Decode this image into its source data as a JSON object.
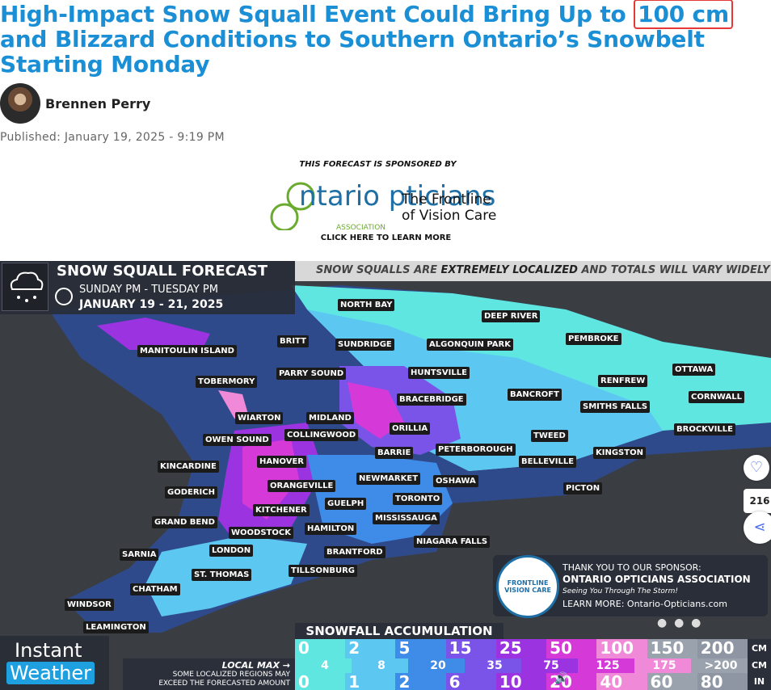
{
  "article": {
    "title_part1": "High-Impact Snow Squall Event Could Bring Up to",
    "title_highlight": "100 cm",
    "title_part2": "and Blizzard Conditions to Southern Ontario’s Snowbelt Starting Monday",
    "author": "Brennen Perry",
    "published": "Published: January 19, 2025 - 9:19 PM"
  },
  "sponsor": {
    "intro": "THIS FORECAST IS SPONSORED BY",
    "logo_name": "ntario pticians",
    "association": "ASSOCIATION",
    "tagline_line1": "The Frontline",
    "tagline_line2": "of Vision Care",
    "cta": "CLICK HERE TO LEARN MORE"
  },
  "map": {
    "title": "SNOW SQUALL FORECAST",
    "period": "SUNDAY PM - TUESDAY PM",
    "dates": "JANUARY 19 - 21, 2025",
    "banner_a": "SNOW SQUALLS ARE",
    "banner_b": "EXTREMELY LOCALIZED",
    "banner_c": "AND TOTALS WILL VARY WIDELY",
    "cities": [
      "NORTH BAY",
      "DEEP RIVER",
      "PEMBROKE",
      "BRITT",
      "SUNDRIDGE",
      "ALGONQUIN PARK",
      "MANITOULIN ISLAND",
      "TOBERMORY",
      "PARRY SOUND",
      "HUNTSVILLE",
      "RENFREW",
      "OTTAWA",
      "BRACEBRIDGE",
      "BANCROFT",
      "SMITHS FALLS",
      "CORNWALL",
      "WIARTON",
      "MIDLAND",
      "ORILLIA",
      "BROCKVILLE",
      "OWEN SOUND",
      "COLLINGWOOD",
      "TWEED",
      "BARRIE",
      "PETERBOROUGH",
      "HANOVER",
      "KINGSTON",
      "KINCARDINE",
      "BELLEVILLE",
      "NEWMARKET",
      "OSHAWA",
      "ORANGEVILLE",
      "PICTON",
      "GODERICH",
      "TORONTO",
      "GUELPH",
      "KITCHENER",
      "MISSISSAUGA",
      "GRAND BEND",
      "HAMILTON",
      "WOODSTOCK",
      "NIAGARA FALLS",
      "SARNIA",
      "LONDON",
      "BRANTFORD",
      "TILLSONBURG",
      "ST. THOMAS",
      "CHATHAM",
      "WINDSOR",
      "LEAMINGTON"
    ],
    "thanks_line": "THANK YOU TO OUR SPONSOR:",
    "thanks_org": "ONTARIO OPTICIANS ASSOCIATION",
    "thanks_seeing": "Seeing You Through The Storm!",
    "thanks_learn": "LEARN MORE: Ontario-Opticians.com",
    "thanks_logo": "FRONTLINE VISION CARE",
    "legend_title": "SNOWFALL ACCUMULATION",
    "local_max": "LOCAL MAX →",
    "local_note1": "SOME LOCALIZED REGIONS MAY",
    "local_note2": "EXCEED THE FORECASTED AMOUNT",
    "cm_values": [
      "0",
      "2",
      "5",
      "15",
      "25",
      "50",
      "100",
      "150",
      "200"
    ],
    "max_values": [
      "4",
      "8",
      "20",
      "35",
      "75",
      "125",
      "175",
      ">200"
    ],
    "in_values": [
      "0",
      "1",
      "2",
      "6",
      "10",
      "20",
      "40",
      "60",
      "80"
    ],
    "unit_cm": "CM",
    "unit_cm2": "CM",
    "unit_in": "IN",
    "brand_line1": "Instant",
    "brand_line2": "Weather",
    "legend_colors": [
      "#5fe6e0",
      "#5cc8f2",
      "#3f8be8",
      "#7a54e8",
      "#9b33e0",
      "#d53ad8",
      "#f08ad8",
      "#9aa3ad",
      "#8d96a2"
    ]
  },
  "share": {
    "count": "216"
  }
}
